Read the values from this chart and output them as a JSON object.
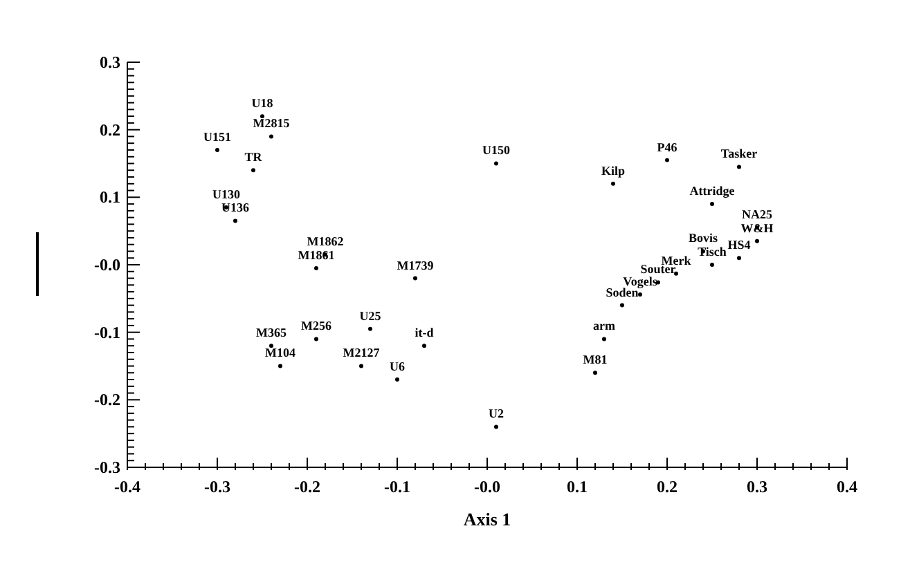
{
  "chart_data": {
    "type": "scatter",
    "xlabel": "Axis 1",
    "marker": "circle",
    "grid": false,
    "xlim": [
      -0.4,
      0.4
    ],
    "ylim": [
      -0.3,
      0.3
    ],
    "xticks": [
      -0.4,
      {
        "value": -0.38,
        "label": null
      },
      {
        "value": -0.36,
        "label": null
      },
      {
        "value": -0.34,
        "label": null
      },
      {
        "value": -0.32,
        "label": null
      },
      -0.3,
      {
        "value": -0.28,
        "label": null
      },
      {
        "value": -0.26,
        "label": null
      },
      {
        "value": -0.24,
        "label": null
      },
      {
        "value": -0.22,
        "label": null
      },
      -0.2,
      {
        "value": -0.18,
        "label": null
      },
      {
        "value": -0.16,
        "label": null
      },
      {
        "value": -0.14,
        "label": null
      },
      {
        "value": -0.12,
        "label": null
      },
      -0.1,
      {
        "value": -0.08,
        "label": null
      },
      {
        "value": -0.06,
        "label": null
      },
      {
        "value": -0.04,
        "label": null
      },
      {
        "value": -0.02,
        "label": null
      },
      {
        "value": 0,
        "label": "-0.0"
      },
      {
        "value": 0.02,
        "label": null
      },
      {
        "value": 0.04,
        "label": null
      },
      {
        "value": 0.06,
        "label": null
      },
      {
        "value": 0.08,
        "label": null
      },
      0.1,
      {
        "value": 0.12,
        "label": null
      },
      {
        "value": 0.14,
        "label": null
      },
      {
        "value": 0.16,
        "label": null
      },
      {
        "value": 0.18,
        "label": null
      },
      0.2,
      {
        "value": 0.22,
        "label": null
      },
      {
        "value": 0.24,
        "label": null
      },
      {
        "value": 0.26,
        "label": null
      },
      {
        "value": 0.28,
        "label": null
      },
      0.3,
      {
        "value": 0.32,
        "label": null
      },
      {
        "value": 0.34,
        "label": null
      },
      {
        "value": 0.36,
        "label": null
      },
      {
        "value": 0.38,
        "label": null
      },
      0.4
    ],
    "yticks": [
      -0.3,
      {
        "value": -0.29,
        "label": null
      },
      {
        "value": -0.28,
        "label": null
      },
      {
        "value": -0.27,
        "label": null
      },
      {
        "value": -0.26,
        "label": null
      },
      {
        "value": -0.25,
        "label": null
      },
      {
        "value": -0.24,
        "label": null
      },
      {
        "value": -0.23,
        "label": null
      },
      {
        "value": -0.22,
        "label": null
      },
      {
        "value": -0.21,
        "label": null
      },
      -0.2,
      {
        "value": -0.19,
        "label": null
      },
      {
        "value": -0.18,
        "label": null
      },
      {
        "value": -0.17,
        "label": null
      },
      {
        "value": -0.16,
        "label": null
      },
      {
        "value": -0.15,
        "label": null
      },
      {
        "value": -0.14,
        "label": null
      },
      {
        "value": -0.13,
        "label": null
      },
      {
        "value": -0.12,
        "label": null
      },
      {
        "value": -0.11,
        "label": null
      },
      -0.1,
      {
        "value": -0.09,
        "label": null
      },
      {
        "value": -0.08,
        "label": null
      },
      {
        "value": -0.07,
        "label": null
      },
      {
        "value": -0.06,
        "label": null
      },
      {
        "value": -0.05,
        "label": null
      },
      {
        "value": -0.04,
        "label": null
      },
      {
        "value": -0.03,
        "label": null
      },
      {
        "value": -0.02,
        "label": null
      },
      {
        "value": -0.01,
        "label": null
      },
      {
        "value": 0,
        "label": "-0.0"
      },
      {
        "value": 0.01,
        "label": null
      },
      {
        "value": 0.02,
        "label": null
      },
      {
        "value": 0.03,
        "label": null
      },
      {
        "value": 0.04,
        "label": null
      },
      {
        "value": 0.05,
        "label": null
      },
      {
        "value": 0.06,
        "label": null
      },
      {
        "value": 0.07,
        "label": null
      },
      {
        "value": 0.08,
        "label": null
      },
      {
        "value": 0.09,
        "label": null
      },
      0.1,
      {
        "value": 0.11,
        "label": null
      },
      {
        "value": 0.12,
        "label": null
      },
      {
        "value": 0.13,
        "label": null
      },
      {
        "value": 0.14,
        "label": null
      },
      {
        "value": 0.15,
        "label": null
      },
      {
        "value": 0.16,
        "label": null
      },
      {
        "value": 0.17,
        "label": null
      },
      {
        "value": 0.18,
        "label": null
      },
      {
        "value": 0.19,
        "label": null
      },
      0.2,
      {
        "value": 0.21,
        "label": null
      },
      {
        "value": 0.22,
        "label": null
      },
      {
        "value": 0.23,
        "label": null
      },
      {
        "value": 0.24,
        "label": null
      },
      {
        "value": 0.25,
        "label": null
      },
      {
        "value": 0.26,
        "label": null
      },
      {
        "value": 0.27,
        "label": null
      },
      {
        "value": 0.28,
        "label": null
      },
      {
        "value": 0.29,
        "label": null
      },
      0.3
    ],
    "series": [
      {
        "color": "#000000",
        "x": [
          -0.25,
          -0.24,
          -0.3,
          -0.26,
          -0.29,
          -0.28,
          -0.18,
          -0.19,
          -0.08,
          -0.13,
          -0.24,
          -0.19,
          -0.07,
          -0.23,
          -0.14,
          -0.1,
          0.01,
          0.01,
          0.2,
          0.28,
          0.14,
          0.25,
          0.3,
          0.3,
          0.24,
          0.28,
          0.25,
          0.21,
          0.19,
          0.17,
          0.15,
          0.13,
          0.12
        ],
        "values": [
          0.22,
          0.19,
          0.17,
          0.14,
          0.085,
          0.065,
          0.015,
          -0.005,
          -0.02,
          -0.095,
          -0.12,
          -0.11,
          -0.12,
          -0.15,
          -0.15,
          -0.17,
          -0.24,
          0.15,
          0.155,
          0.145,
          0.12,
          0.09,
          0.055,
          0.035,
          0.02,
          0.01,
          0.0,
          -0.013,
          -0.026,
          -0.044,
          -0.06,
          -0.11,
          -0.16
        ],
        "value_labels": [
          "U18",
          "M2815",
          "U151",
          "TR",
          "U130",
          "U136",
          "M1862",
          "M1861",
          "M1739",
          "U25",
          "M365",
          "M256",
          "it-d",
          "M104",
          "M2127",
          "U6",
          "U2",
          "U150",
          "P46",
          "Tasker",
          "Kilp",
          "Attridge",
          "NA25",
          "W&H",
          "Bovis",
          "HS4",
          "Tisch",
          "Merk",
          "Souter",
          "Vogels",
          "Soden",
          "arm",
          "M81"
        ]
      }
    ]
  }
}
